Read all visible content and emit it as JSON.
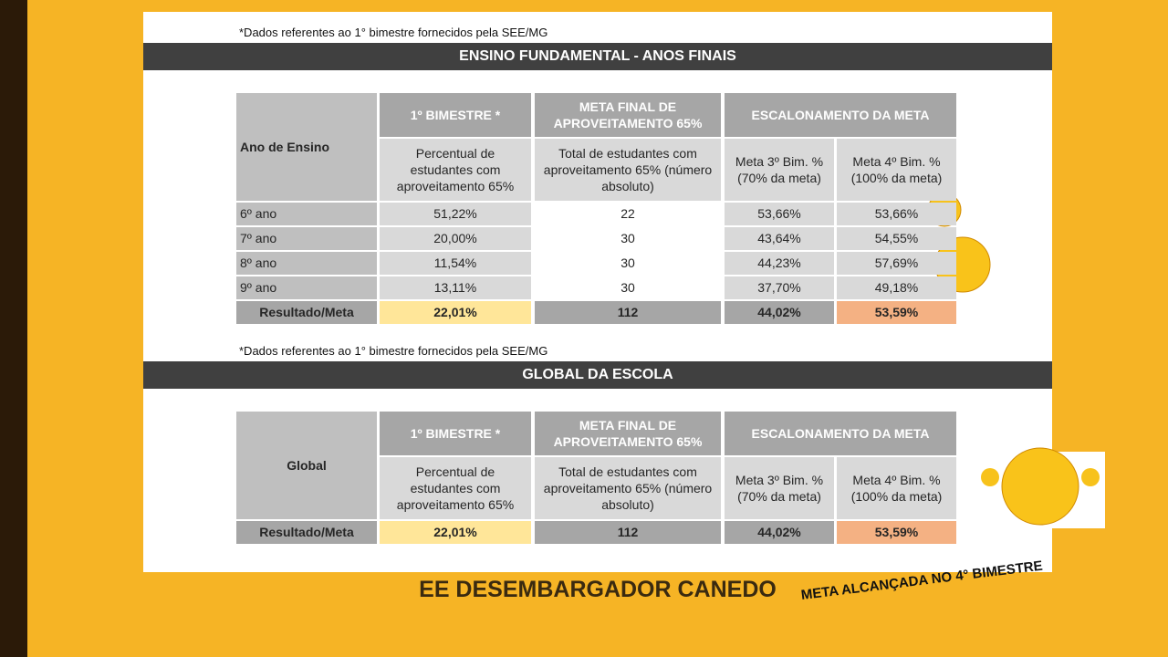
{
  "sections": [
    {
      "note": "*Dados referentes ao 1° bimestre fornecidos pela SEE/MG",
      "title": "ENSINO FUNDAMENTAL - ANOS FINAIS",
      "table": {
        "header": {
          "row_label": "Ano de Ensino",
          "col1": "1º BIMESTRE *",
          "col2": "META FINAL DE APROVEITAMENTO 65%",
          "col3": "ESCALONAMENTO DA META",
          "sub1": "Percentual de estudantes com aproveitamento 65%",
          "sub2": "Total de estudantes com aproveitamento 65% (número absoluto)",
          "sub3": "Meta 3º Bim. % (70% da meta)",
          "sub4": "Meta 4º Bim. % (100% da meta)"
        },
        "rows": [
          [
            "6º ano",
            "51,22%",
            "22",
            "53,66%",
            "53,66%"
          ],
          [
            "7º ano",
            "20,00%",
            "30",
            "43,64%",
            "54,55%"
          ],
          [
            "8º ano",
            "11,54%",
            "30",
            "44,23%",
            "57,69%"
          ],
          [
            "9º ano",
            "13,11%",
            "30",
            "37,70%",
            "49,18%"
          ],
          [
            "Resultado/Meta",
            "22,01%",
            "112",
            "44,02%",
            "53,59%"
          ]
        ]
      }
    },
    {
      "note": "*Dados referentes ao 1° bimestre fornecidos pela SEE/MG",
      "title": "GLOBAL DA ESCOLA",
      "table": {
        "header": {
          "row_label": "Global",
          "col1": "1º BIMESTRE *",
          "col2": "META FINAL DE APROVEITAMENTO 65%",
          "col3": "ESCALONAMENTO DA META",
          "sub1": "Percentual de estudantes com aproveitamento 65%",
          "sub2": "Total de estudantes com aproveitamento 65% (número absoluto)",
          "sub3": "Meta 3º Bim. % (70% da meta)",
          "sub4": "Meta 4º Bim. % (100% da meta)"
        },
        "rows": [
          [
            "Resultado/Meta",
            "22,01%",
            "112",
            "44,02%",
            "53,59%"
          ]
        ]
      }
    }
  ],
  "footer": "EE DESEMBARGADOR CANEDO",
  "badge": "META ALCANÇADA NO 4° BIMESTRE"
}
